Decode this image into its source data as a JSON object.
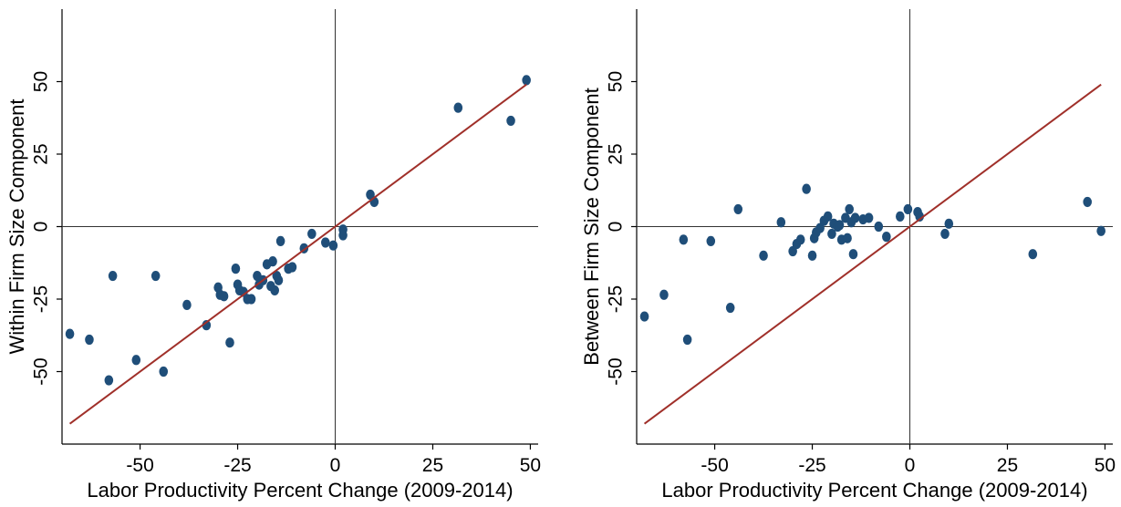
{
  "chart_data": [
    {
      "type": "scatter",
      "xlabel": "Labor Productivity Percent Change (2009-2014)",
      "ylabel": "Within Firm Size Component",
      "xlim": [
        -70,
        52
      ],
      "ylim": [
        -75,
        75
      ],
      "xticks": [
        -50,
        -25,
        0,
        25,
        50
      ],
      "yticks": [
        -50,
        -25,
        0,
        25,
        50
      ],
      "xtick_labels": [
        "-50",
        "-25",
        "0",
        "25",
        "50"
      ],
      "ytick_labels": [
        "-50",
        "-25",
        "0",
        "25",
        "50"
      ],
      "grid": false,
      "reference_lines": {
        "x": 0,
        "y": 0
      },
      "fit_line": {
        "x": [
          -68,
          49
        ],
        "y": [
          -68,
          49
        ]
      },
      "colors": {
        "points": "#1f4e79",
        "fit_line": "#a0302a",
        "reference": "#333333"
      },
      "points": [
        {
          "x": -68,
          "y": -37
        },
        {
          "x": -63,
          "y": -39
        },
        {
          "x": -58,
          "y": -53
        },
        {
          "x": -57,
          "y": -17
        },
        {
          "x": -51,
          "y": -46
        },
        {
          "x": -46,
          "y": -17
        },
        {
          "x": -44,
          "y": -50
        },
        {
          "x": -38,
          "y": -27
        },
        {
          "x": -33,
          "y": -34
        },
        {
          "x": -30,
          "y": -21
        },
        {
          "x": -29.5,
          "y": -23.5
        },
        {
          "x": -28.5,
          "y": -24
        },
        {
          "x": -27,
          "y": -40
        },
        {
          "x": -25.5,
          "y": -14.5
        },
        {
          "x": -25,
          "y": -20
        },
        {
          "x": -24.5,
          "y": -22
        },
        {
          "x": -23.5,
          "y": -22.5
        },
        {
          "x": -22.5,
          "y": -25
        },
        {
          "x": -21.5,
          "y": -25
        },
        {
          "x": -20,
          "y": -17
        },
        {
          "x": -19.5,
          "y": -20
        },
        {
          "x": -18.5,
          "y": -18.5
        },
        {
          "x": -17.5,
          "y": -13
        },
        {
          "x": -16.5,
          "y": -20.5
        },
        {
          "x": -16,
          "y": -12
        },
        {
          "x": -15.5,
          "y": -22
        },
        {
          "x": -15,
          "y": -17
        },
        {
          "x": -14.5,
          "y": -18.5
        },
        {
          "x": -14,
          "y": -5
        },
        {
          "x": -12,
          "y": -14.5
        },
        {
          "x": -11,
          "y": -14
        },
        {
          "x": -8,
          "y": -7.5
        },
        {
          "x": -6,
          "y": -2.5
        },
        {
          "x": -2.5,
          "y": -5.5
        },
        {
          "x": -0.5,
          "y": -6.5
        },
        {
          "x": 2,
          "y": -3
        },
        {
          "x": 2,
          "y": -1
        },
        {
          "x": 9,
          "y": 11
        },
        {
          "x": 10,
          "y": 8.5
        },
        {
          "x": 31.5,
          "y": 41
        },
        {
          "x": 45,
          "y": 36.5
        },
        {
          "x": 49,
          "y": 50.5
        }
      ]
    },
    {
      "type": "scatter",
      "xlabel": "Labor Productivity Percent Change (2009-2014)",
      "ylabel": "Between Firm Size Component",
      "xlim": [
        -70,
        52
      ],
      "ylim": [
        -75,
        75
      ],
      "xticks": [
        -50,
        -25,
        0,
        25,
        50
      ],
      "yticks": [
        -50,
        -25,
        0,
        25,
        50
      ],
      "xtick_labels": [
        "-50",
        "-25",
        "0",
        "25",
        "50"
      ],
      "ytick_labels": [
        "-50",
        "-25",
        "0",
        "25",
        "50"
      ],
      "grid": false,
      "reference_lines": {
        "x": 0,
        "y": 0
      },
      "fit_line": {
        "x": [
          -68,
          49
        ],
        "y": [
          -68,
          49
        ]
      },
      "colors": {
        "points": "#1f4e79",
        "fit_line": "#a0302a",
        "reference": "#333333"
      },
      "points": [
        {
          "x": -68,
          "y": -31
        },
        {
          "x": -63,
          "y": -23.5
        },
        {
          "x": -58,
          "y": -4.5
        },
        {
          "x": -57,
          "y": -39
        },
        {
          "x": -51,
          "y": -5
        },
        {
          "x": -46,
          "y": -28
        },
        {
          "x": -44,
          "y": 6
        },
        {
          "x": -37.5,
          "y": -10
        },
        {
          "x": -33,
          "y": 1.5
        },
        {
          "x": -30,
          "y": -8.5
        },
        {
          "x": -29,
          "y": -6
        },
        {
          "x": -28,
          "y": -4.5
        },
        {
          "x": -26.5,
          "y": 13
        },
        {
          "x": -25,
          "y": -10
        },
        {
          "x": -24.5,
          "y": -4
        },
        {
          "x": -24,
          "y": -2
        },
        {
          "x": -23,
          "y": -0.5
        },
        {
          "x": -22,
          "y": 2
        },
        {
          "x": -21,
          "y": 3.5
        },
        {
          "x": -20,
          "y": -2.5
        },
        {
          "x": -19.5,
          "y": 1
        },
        {
          "x": -18.5,
          "y": 0
        },
        {
          "x": -18,
          "y": 0.5
        },
        {
          "x": -17.5,
          "y": -4.5
        },
        {
          "x": -16.5,
          "y": 3
        },
        {
          "x": -16,
          "y": -4
        },
        {
          "x": -15.5,
          "y": 6
        },
        {
          "x": -15,
          "y": 1.5
        },
        {
          "x": -14.5,
          "y": -9.5
        },
        {
          "x": -14,
          "y": 3
        },
        {
          "x": -12,
          "y": 2.5
        },
        {
          "x": -10.5,
          "y": 3
        },
        {
          "x": -8,
          "y": 0
        },
        {
          "x": -6,
          "y": -3.5
        },
        {
          "x": -2.5,
          "y": 3.5
        },
        {
          "x": -0.5,
          "y": 6
        },
        {
          "x": 2,
          "y": 5
        },
        {
          "x": 2.5,
          "y": 3.5
        },
        {
          "x": 9,
          "y": -2.5
        },
        {
          "x": 10,
          "y": 1
        },
        {
          "x": 31.5,
          "y": -9.5
        },
        {
          "x": 45.5,
          "y": 8.5
        },
        {
          "x": 49,
          "y": -1.5
        }
      ]
    }
  ]
}
